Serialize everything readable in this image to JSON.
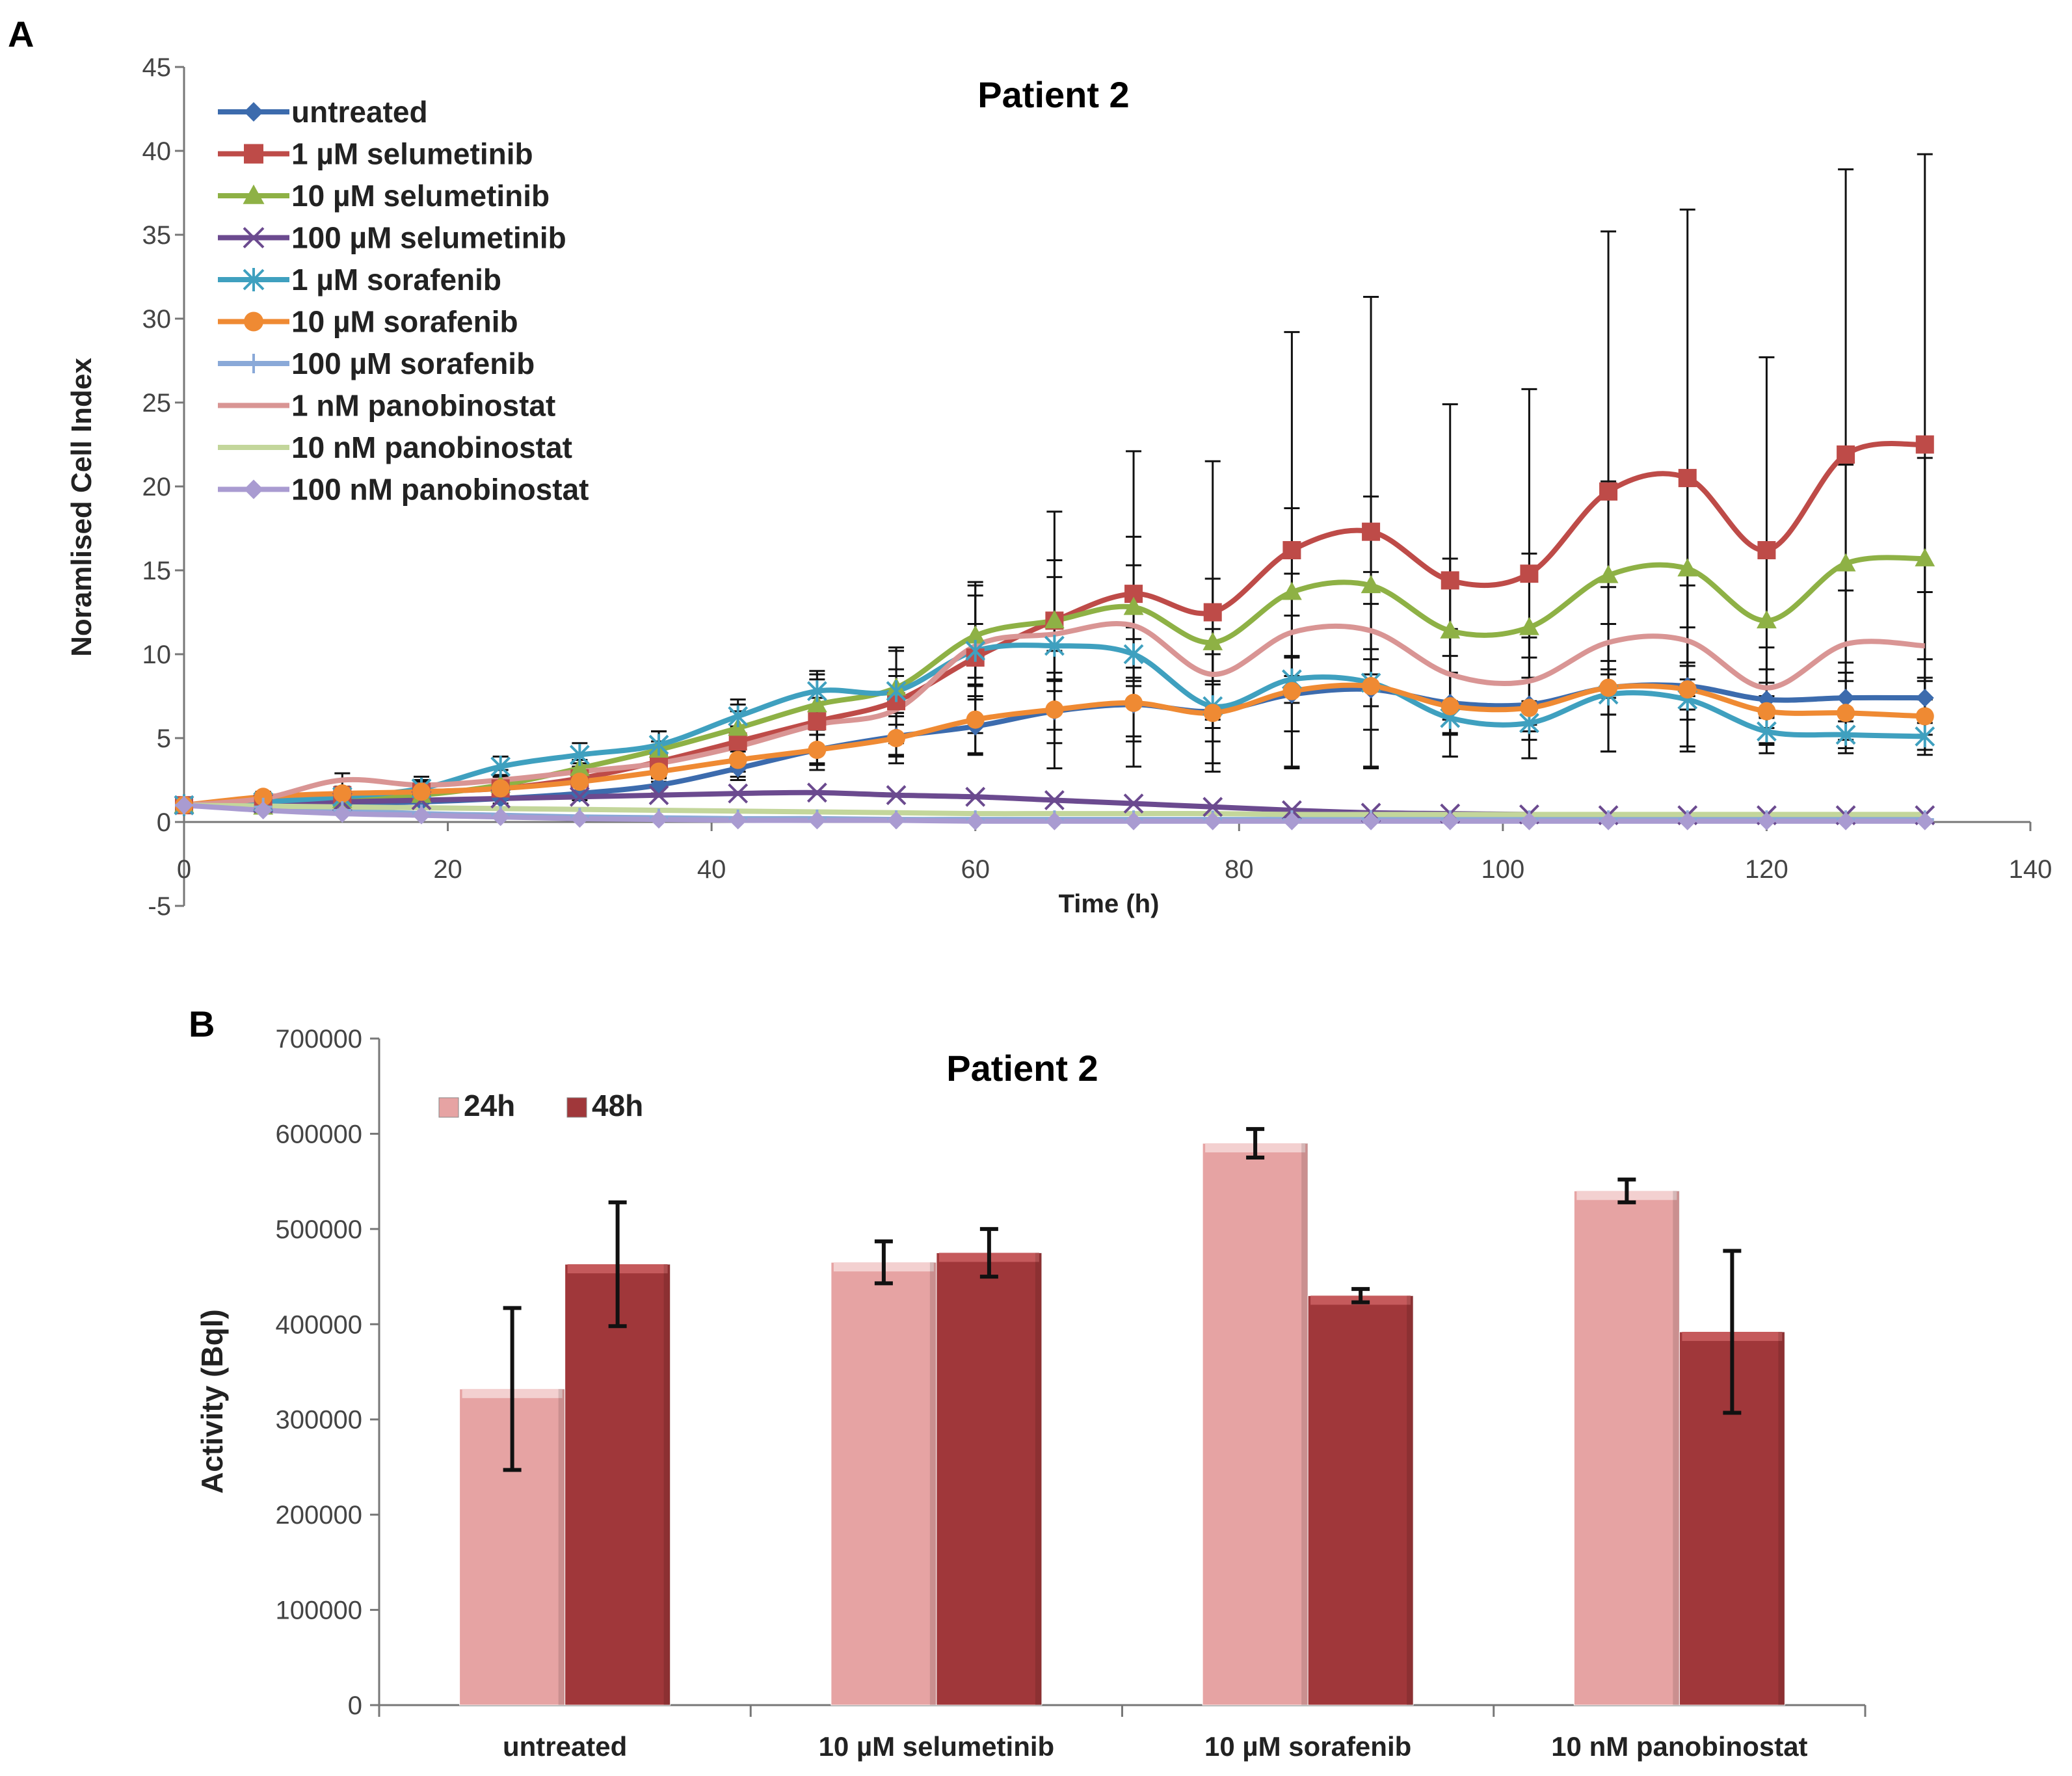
{
  "panels": {
    "a": {
      "letter": "A"
    },
    "b": {
      "letter": "B"
    }
  },
  "chart_data": [
    {
      "type": "line",
      "title": "Patient 2",
      "xlabel": "Time (h)",
      "ylabel": "Noramlised Cell Index",
      "xlim": [
        0,
        140
      ],
      "ylim": [
        -5,
        45
      ],
      "xticks": [
        0,
        20,
        40,
        60,
        80,
        100,
        120,
        140
      ],
      "yticks": [
        -5,
        0,
        5,
        10,
        15,
        20,
        25,
        30,
        35,
        40,
        45
      ],
      "x": [
        0,
        6,
        12,
        18,
        24,
        30,
        36,
        42,
        48,
        54,
        60,
        66,
        72,
        78,
        84,
        90,
        96,
        102,
        108,
        114,
        120,
        126,
        132
      ],
      "legend_position": "top-left",
      "series": [
        {
          "name": "untreated",
          "color": "#3c6bad",
          "marker": "diamond",
          "values": [
            1,
            1,
            1.1,
            1.2,
            1.4,
            1.7,
            2.2,
            3.2,
            4.3,
            5.1,
            5.7,
            6.6,
            7.0,
            6.6,
            7.6,
            7.9,
            7.1,
            7.0,
            8.0,
            8.1,
            7.3,
            7.4,
            7.4
          ],
          "errors": [
            0.3,
            0.3,
            0.3,
            0.3,
            0.3,
            0.4,
            0.5,
            0.7,
            0.9,
            1.2,
            1.6,
            1.9,
            2.2,
            1.8,
            2.2,
            2.4,
            1.8,
            1.6,
            1.6,
            1.4,
            1.0,
            1.0,
            1.0
          ]
        },
        {
          "name": "1 µM selumetinib",
          "color": "#be4b48",
          "marker": "square",
          "values": [
            1,
            1.2,
            1.6,
            1.8,
            2.0,
            2.6,
            3.6,
            4.8,
            6.0,
            7.2,
            9.8,
            12.0,
            13.6,
            12.5,
            16.2,
            17.3,
            14.4,
            14.8,
            19.7,
            20.5,
            16.2,
            21.9,
            22.5
          ],
          "errors": [
            0.3,
            0.3,
            0.5,
            0.6,
            0.7,
            0.9,
            1.2,
            1.8,
            2.5,
            3.2,
            4.5,
            6.5,
            8.5,
            9.0,
            13.0,
            14.0,
            10.5,
            11.0,
            15.5,
            16.0,
            11.5,
            17.0,
            17.3
          ]
        },
        {
          "name": "10 µM selumetinib",
          "color": "#8eb145",
          "marker": "triangle",
          "values": [
            1,
            0.9,
            1.3,
            1.6,
            2.2,
            3.2,
            4.3,
            5.6,
            7.0,
            8.0,
            11.1,
            12.0,
            12.8,
            10.7,
            13.7,
            14.1,
            11.4,
            11.6,
            14.7,
            15.1,
            12.0,
            15.4,
            15.7
          ],
          "errors": [
            0.3,
            0.3,
            0.4,
            0.5,
            0.6,
            0.8,
            1.1,
            1.4,
            1.8,
            2.2,
            3.0,
            3.6,
            4.2,
            3.8,
            5.0,
            5.3,
            4.3,
            4.4,
            5.6,
            5.8,
            4.5,
            5.9,
            6.0
          ]
        },
        {
          "name": "100 µM selumetinib",
          "color": "#6b4a8f",
          "marker": "x",
          "values": [
            1,
            1.1,
            1.2,
            1.3,
            1.4,
            1.5,
            1.6,
            1.7,
            1.75,
            1.6,
            1.5,
            1.3,
            1.1,
            0.9,
            0.7,
            0.55,
            0.5,
            0.45,
            0.4,
            0.4,
            0.4,
            0.4,
            0.4
          ],
          "errors": [
            0.1,
            0.1,
            0.1,
            0.1,
            0.1,
            0.1,
            0.1,
            0.1,
            0.1,
            0.1,
            0.1,
            0.1,
            0.1,
            0.1,
            0.1,
            0.1,
            0.1,
            0.1,
            0.1,
            0.1,
            0.1,
            0.1,
            0.1
          ]
        },
        {
          "name": "1 µM sorafenib",
          "color": "#3fa0bf",
          "marker": "star",
          "values": [
            1,
            1.2,
            1.5,
            2.0,
            3.3,
            4.0,
            4.6,
            6.3,
            7.8,
            7.8,
            10.2,
            10.5,
            10.0,
            6.9,
            8.5,
            8.3,
            6.2,
            5.9,
            7.6,
            7.3,
            5.4,
            5.2,
            5.1
          ],
          "errors": [
            0.3,
            0.3,
            0.4,
            0.5,
            0.6,
            0.7,
            0.8,
            1.0,
            1.2,
            1.3,
            1.6,
            1.6,
            1.6,
            1.3,
            1.4,
            1.4,
            1.0,
            1.0,
            1.2,
            1.2,
            0.8,
            0.8,
            0.8
          ]
        },
        {
          "name": "10 µM sorafenib",
          "color": "#ef8a33",
          "marker": "circle",
          "values": [
            1,
            1.5,
            1.7,
            1.8,
            2.0,
            2.4,
            3.0,
            3.7,
            4.3,
            5.0,
            6.1,
            6.7,
            7.1,
            6.5,
            7.8,
            8.1,
            6.9,
            6.8,
            8.0,
            7.9,
            6.6,
            6.5,
            6.3
          ],
          "errors": [
            0.3,
            0.3,
            0.4,
            0.4,
            0.5,
            0.6,
            0.8,
            1.0,
            1.2,
            1.5,
            2.1,
            3.5,
            3.8,
            3.5,
            4.5,
            4.9,
            3.0,
            3.0,
            3.8,
            3.7,
            2.5,
            2.4,
            2.3
          ]
        },
        {
          "name": "100 µM sorafenib",
          "color": "#8aa9d8",
          "marker": "plus",
          "values": [
            1,
            0.9,
            0.7,
            0.5,
            0.4,
            0.3,
            0.25,
            0.2,
            0.2,
            0.15,
            0.15,
            0.15,
            0.15,
            0.15,
            0.15,
            0.15,
            0.15,
            0.15,
            0.15,
            0.15,
            0.15,
            0.15,
            0.15
          ],
          "errors": [
            0.1,
            0.1,
            0.1,
            0.1,
            0.1,
            0.1,
            0.1,
            0.1,
            0.1,
            0.1,
            0.1,
            0.1,
            0.1,
            0.1,
            0.1,
            0.1,
            0.1,
            0.1,
            0.1,
            0.1,
            0.1,
            0.1,
            0.1
          ]
        },
        {
          "name": "1 nM panobinostat",
          "color": "#d99594",
          "marker": "none",
          "values": [
            1,
            1.4,
            2.5,
            2.2,
            2.5,
            3.0,
            3.5,
            4.5,
            5.8,
            6.7,
            10.5,
            11.2,
            11.7,
            8.8,
            11.3,
            11.4,
            8.8,
            8.4,
            10.7,
            10.8,
            8.0,
            10.6,
            10.5
          ],
          "errors": [
            0.3,
            0.3,
            0.4,
            0.5,
            0.6,
            0.7,
            0.9,
            1.2,
            1.6,
            2.0,
            3.0,
            3.4,
            3.6,
            2.7,
            3.5,
            3.5,
            2.7,
            2.6,
            3.3,
            3.3,
            2.4,
            3.2,
            3.2
          ]
        },
        {
          "name": "10 nM panobinostat",
          "color": "#c3d69b",
          "marker": "none",
          "values": [
            1,
            0.95,
            0.9,
            0.85,
            0.8,
            0.75,
            0.7,
            0.65,
            0.6,
            0.55,
            0.5,
            0.5,
            0.5,
            0.5,
            0.45,
            0.45,
            0.45,
            0.45,
            0.45,
            0.45,
            0.45,
            0.45,
            0.45
          ],
          "errors": [
            0.1,
            0.1,
            0.1,
            0.1,
            0.1,
            0.1,
            0.1,
            0.1,
            0.1,
            0.1,
            0.1,
            0.1,
            0.1,
            0.1,
            0.1,
            0.1,
            0.1,
            0.1,
            0.1,
            0.1,
            0.1,
            0.1,
            0.1
          ]
        },
        {
          "name": "100 nM panobinostat",
          "color": "#a99bd1",
          "marker": "diamond",
          "values": [
            1,
            0.7,
            0.5,
            0.4,
            0.3,
            0.2,
            0.15,
            0.1,
            0.1,
            0.1,
            0.05,
            0.05,
            0.05,
            0.05,
            0.05,
            0.05,
            0.05,
            0.05,
            0.05,
            0.05,
            0.05,
            0.05,
            0.05
          ],
          "errors": [
            0.1,
            0.1,
            0.1,
            0.1,
            0.1,
            0.1,
            0.1,
            0.1,
            0.1,
            0.1,
            0.1,
            0.1,
            0.1,
            0.1,
            0.1,
            0.1,
            0.1,
            0.1,
            0.1,
            0.1,
            0.1,
            0.1,
            0.1
          ]
        }
      ]
    },
    {
      "type": "bar",
      "title": "Patient 2",
      "xlabel": "",
      "ylabel": "Activity (Bql)",
      "ylim": [
        0,
        700000
      ],
      "yticks": [
        0,
        100000,
        200000,
        300000,
        400000,
        500000,
        600000,
        700000
      ],
      "categories": [
        "untreated",
        "10 µM selumetinib",
        "10 µM sorafenib",
        "10 nM panobinostat"
      ],
      "legend_position": "top-left",
      "series": [
        {
          "name": "24h",
          "color": "#e6a3a3",
          "values": [
            332000,
            465000,
            590000,
            540000
          ],
          "errors": [
            85000,
            22000,
            15000,
            12000
          ]
        },
        {
          "name": "48h",
          "color": "#a0373a",
          "values": [
            463000,
            475000,
            430000,
            392000
          ],
          "errors": [
            65000,
            25000,
            7000,
            85000
          ]
        }
      ]
    }
  ]
}
